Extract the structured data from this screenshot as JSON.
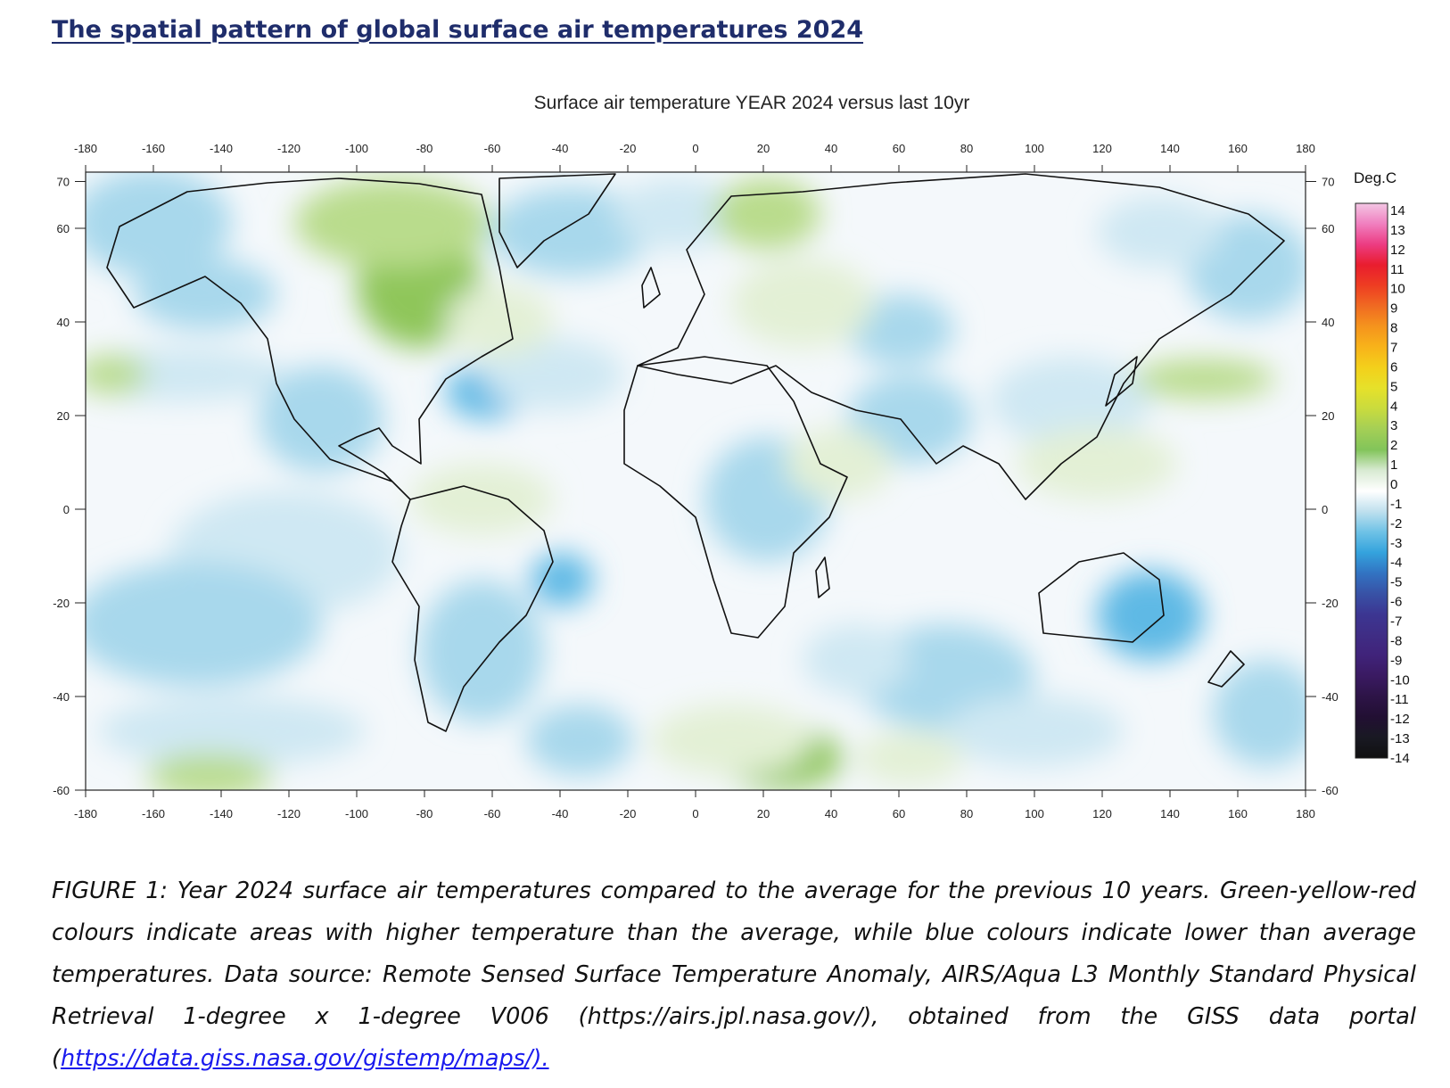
{
  "heading": "The spatial pattern of global surface air temperatures 2024",
  "map": {
    "title": "Surface air temperature YEAR 2024 versus last 10yr",
    "lon_ticks": [
      "-180",
      "-160",
      "-140",
      "-120",
      "-100",
      "-80",
      "-60",
      "-40",
      "-20",
      "0",
      "20",
      "40",
      "60",
      "80",
      "100",
      "120",
      "140",
      "160",
      "180"
    ],
    "lat_ticks": [
      "70",
      "60",
      "40",
      "20",
      "0",
      "-20",
      "-40",
      "-60"
    ],
    "lon_range": [
      -180,
      180
    ],
    "lat_range": [
      -60,
      72
    ],
    "colorbar": {
      "unit": "Deg.C",
      "labels": [
        "14",
        "13",
        "12",
        "11",
        "10",
        "9",
        "8",
        "7",
        "6",
        "5",
        "4",
        "3",
        "2",
        "1",
        "0",
        "-1",
        "-2",
        "-3",
        "-4",
        "-5",
        "-6",
        "-7",
        "-8",
        "-9",
        "-10",
        "-11",
        "-12",
        "-13",
        "-14"
      ],
      "colors": [
        "#f3c6e4",
        "#f07fbf",
        "#ec3c82",
        "#e91d2e",
        "#ee3d22",
        "#f06a22",
        "#f5941d",
        "#f8b31a",
        "#f3d01b",
        "#e6e12a",
        "#c9db3e",
        "#a4cf56",
        "#82c45a",
        "#d8ead2",
        "#ffffff",
        "#bfe0ee",
        "#6ec2e6",
        "#34a3dd",
        "#3273c2",
        "#3852a6",
        "#3c3692",
        "#3f2d85",
        "#40237a",
        "#3a1a62",
        "#2d1447",
        "#220f33",
        "#191923",
        "#101010"
      ]
    },
    "anomaly_colors": {
      "cool_light": "#cfe8f3",
      "cool": "#a8d8ec",
      "cool_strong": "#5fb9e5",
      "warm_light": "#e3f0d5",
      "warm": "#b9dc8c",
      "warm_strong": "#8fc65a"
    }
  },
  "caption": {
    "text": "FIGURE 1: Year 2024 surface air temperatures compared to the average for the previous 10 years. Green-yellow-red colours indicate areas with higher temperature than the average, while blue colours indicate lower than average temperatures. Data source: Remote Sensed Surface Temperature Anomaly, AIRS/Aqua L3 Monthly Standard Physical Retrieval 1-degree x 1-degree V006 (https://airs.jpl.nasa.gov/), obtained from the GISS data portal (",
    "link": "https://data.giss.nasa.gov/gistemp/maps/)."
  }
}
